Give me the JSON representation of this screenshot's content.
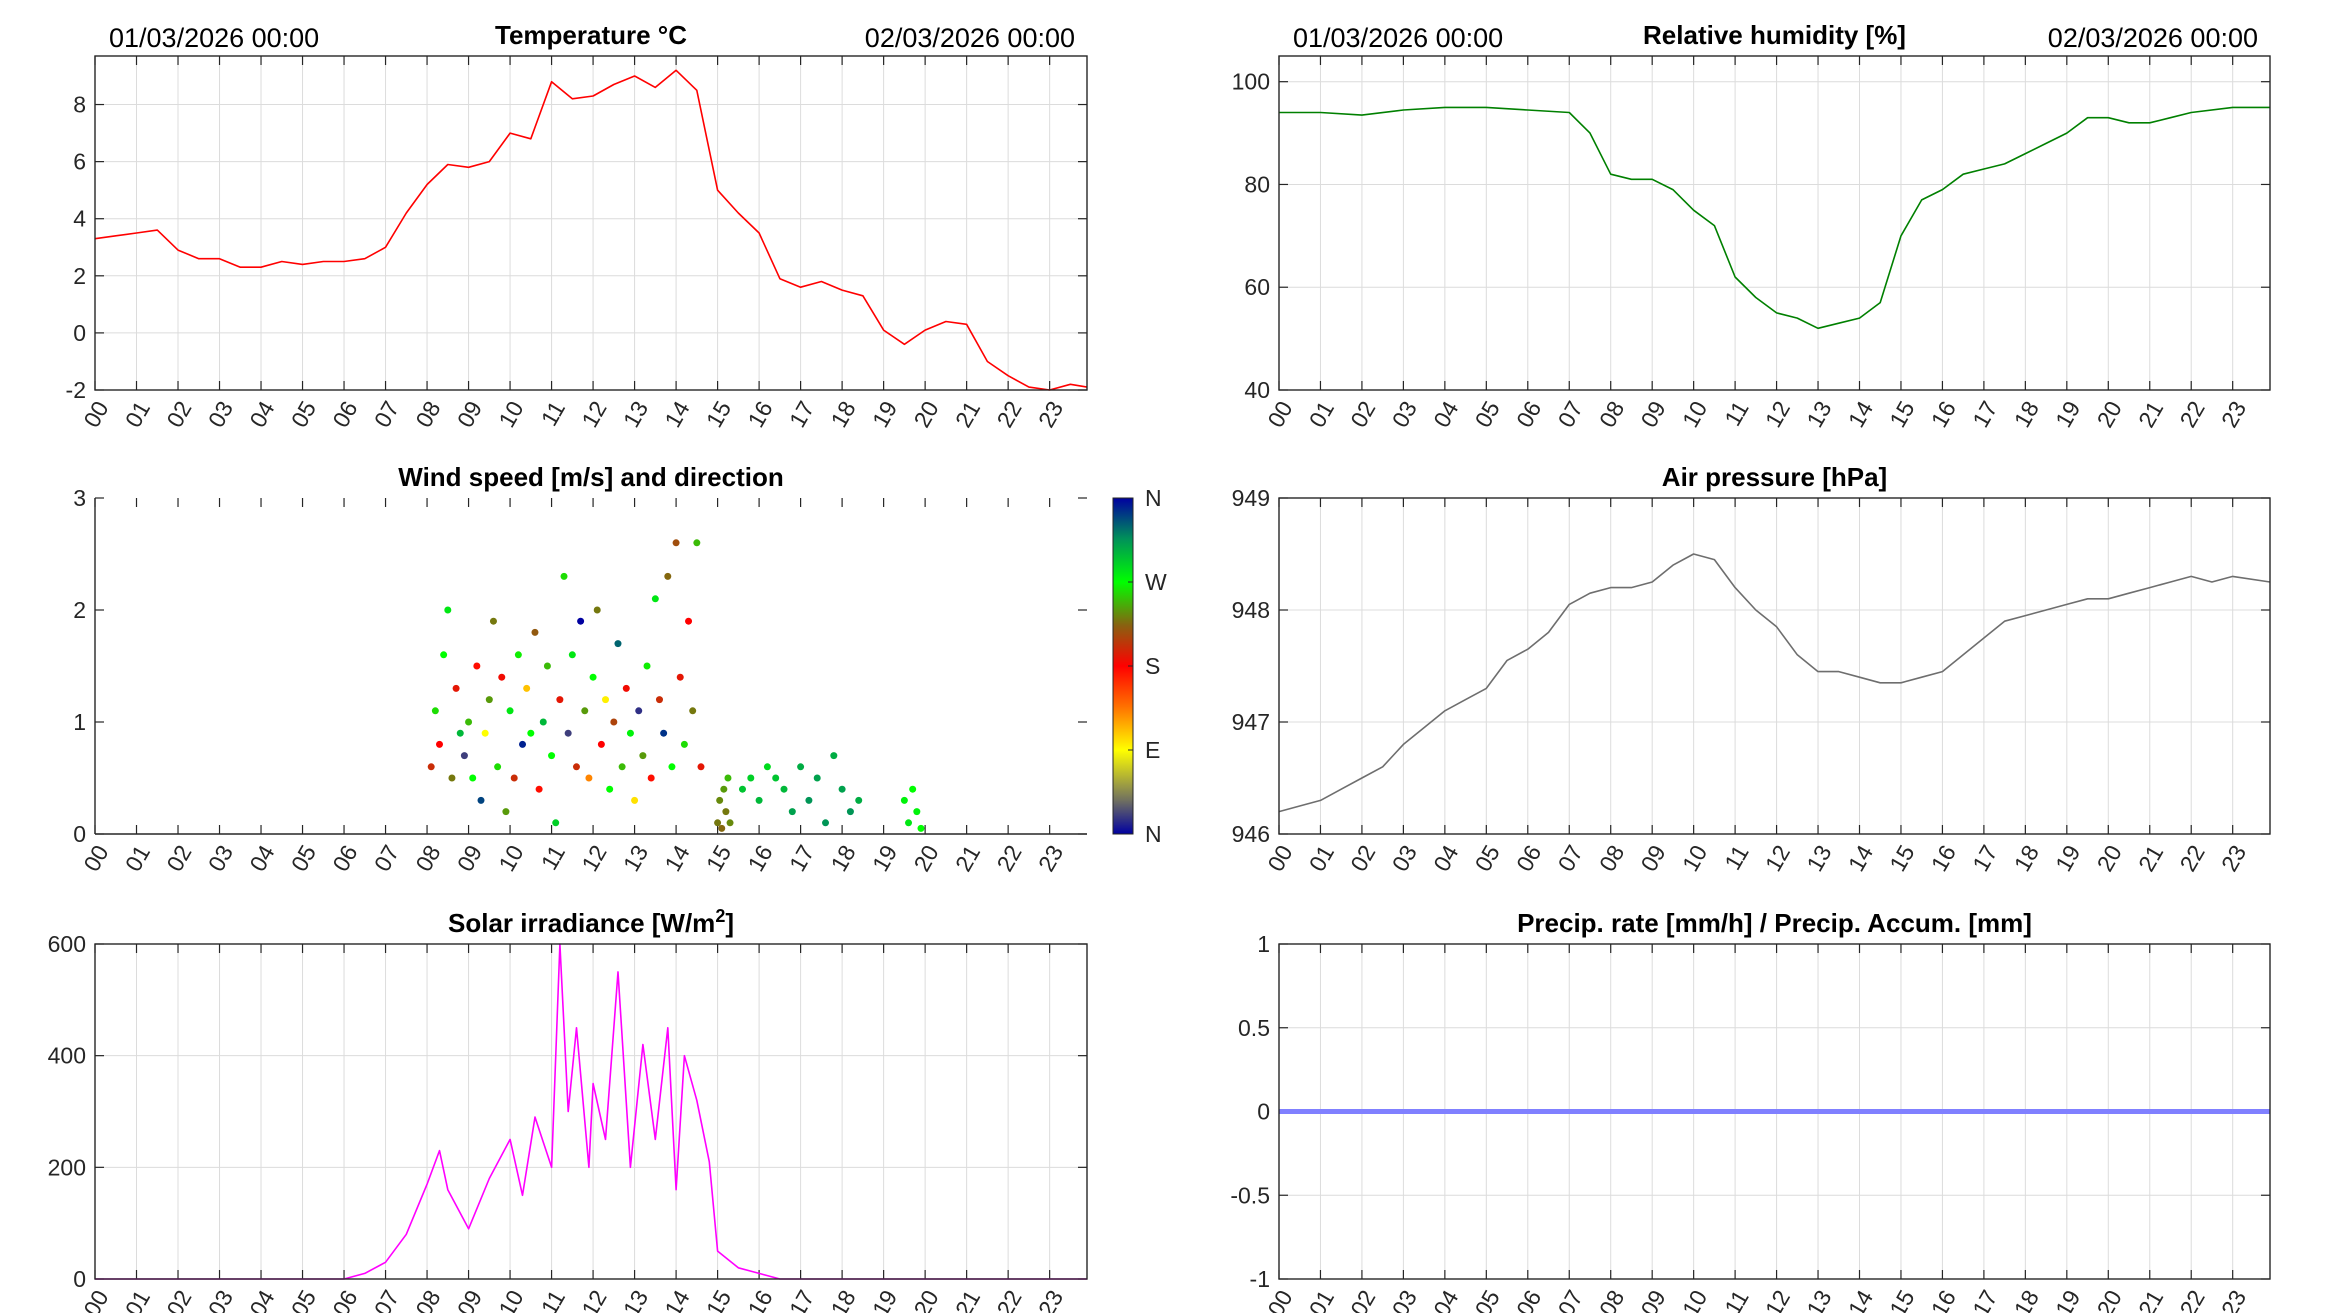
{
  "date_start": "01/03/2026 00:00",
  "date_end": "02/03/2026 00:00",
  "x_tick_labels": [
    "00",
    "01",
    "02",
    "03",
    "04",
    "05",
    "06",
    "07",
    "08",
    "09",
    "10",
    "11",
    "12",
    "13",
    "14",
    "15",
    "16",
    "17",
    "18",
    "19",
    "20",
    "21",
    "22",
    "23"
  ],
  "colors": {
    "temperature": "#ff0000",
    "humidity": "#008000",
    "pressure": "#6e6e6e",
    "solar": "#ff00ff",
    "precip": "#8080ff",
    "grid": "#dcdcdc",
    "axis": "#262626"
  },
  "chart_data": [
    {
      "id": "temperature",
      "type": "line",
      "title": "Temperature °C",
      "show_dates": true,
      "xlabel": "",
      "ylabel": "",
      "xlim": [
        0,
        23.9
      ],
      "ylim": [
        -2,
        9.7
      ],
      "grid": true,
      "y_ticks": [
        -2,
        0,
        2,
        4,
        6,
        8
      ],
      "y_tick_labels": [
        "-2",
        "0",
        "2",
        "4",
        "6",
        "8"
      ],
      "x": [
        0,
        0.5,
        1,
        1.5,
        2,
        2.5,
        3,
        3.5,
        4,
        4.5,
        5,
        5.5,
        6,
        6.5,
        7,
        7.5,
        8,
        8.5,
        9,
        9.5,
        10,
        10.5,
        11,
        11.5,
        12,
        12.5,
        13,
        13.5,
        14,
        14.5,
        15,
        15.5,
        16,
        16.5,
        17,
        17.5,
        18,
        18.5,
        19,
        19.5,
        20,
        20.5,
        21,
        21.5,
        22,
        22.5,
        23,
        23.5,
        23.9
      ],
      "y": [
        3.3,
        3.4,
        3.5,
        3.6,
        2.9,
        2.6,
        2.6,
        2.3,
        2.3,
        2.5,
        2.4,
        2.5,
        2.5,
        2.6,
        3.0,
        4.2,
        5.2,
        5.9,
        5.8,
        6.0,
        7.0,
        6.8,
        8.8,
        8.2,
        8.3,
        8.7,
        9.0,
        8.6,
        9.2,
        8.5,
        5.0,
        4.2,
        3.5,
        1.9,
        1.6,
        1.8,
        1.5,
        1.3,
        0.1,
        -0.4,
        0.1,
        0.4,
        0.3,
        -1.0,
        -1.5,
        -1.9,
        -2.0,
        -1.8,
        -1.9
      ]
    },
    {
      "id": "humidity",
      "type": "line",
      "title": "Relative humidity [%]",
      "show_dates": true,
      "xlabel": "",
      "ylabel": "",
      "xlim": [
        0,
        23.9
      ],
      "ylim": [
        40,
        105
      ],
      "grid": true,
      "y_ticks": [
        40,
        60,
        80,
        100
      ],
      "y_tick_labels": [
        "40",
        "60",
        "80",
        "100"
      ],
      "x": [
        0,
        1,
        2,
        3,
        4,
        5,
        6,
        7,
        7.5,
        8,
        8.5,
        9,
        9.5,
        10,
        10.5,
        11,
        11.5,
        12,
        12.5,
        13,
        13.5,
        14,
        14.5,
        15,
        15.5,
        16,
        16.5,
        17,
        17.5,
        18,
        18.5,
        19,
        19.5,
        20,
        20.5,
        21,
        21.5,
        22,
        23,
        23.9
      ],
      "y": [
        94,
        94,
        93.5,
        94.5,
        95,
        95,
        94.5,
        94,
        90,
        82,
        81,
        81,
        79,
        75,
        72,
        62,
        58,
        55,
        54,
        52,
        53,
        54,
        57,
        70,
        77,
        79,
        82,
        83,
        84,
        86,
        88,
        90,
        93,
        93,
        92,
        92,
        93,
        94,
        95,
        95
      ]
    },
    {
      "id": "wind",
      "type": "scatter",
      "title": "Wind speed [m/s] and direction",
      "show_dates": false,
      "xlabel": "",
      "ylabel": "",
      "xlim": [
        0,
        23.9
      ],
      "ylim": [
        0,
        3
      ],
      "grid": false,
      "y_ticks": [
        0,
        1,
        2,
        3
      ],
      "y_tick_labels": [
        "0",
        "1",
        "2",
        "3"
      ],
      "colorbar_labels": [
        "N",
        "E",
        "S",
        "W",
        "N"
      ],
      "point_fields": [
        "hour",
        "speed_ms",
        "direction_deg"
      ],
      "points": [
        [
          8.1,
          0.6,
          200
        ],
        [
          8.2,
          1.1,
          260
        ],
        [
          8.3,
          0.8,
          180
        ],
        [
          8.4,
          1.6,
          270
        ],
        [
          8.5,
          2.0,
          280
        ],
        [
          8.6,
          0.5,
          230
        ],
        [
          8.7,
          1.3,
          190
        ],
        [
          8.8,
          0.9,
          300
        ],
        [
          8.9,
          0.7,
          20
        ],
        [
          9.0,
          1.0,
          250
        ],
        [
          9.1,
          0.5,
          270
        ],
        [
          9.2,
          1.5,
          175
        ],
        [
          9.3,
          0.3,
          340
        ],
        [
          9.4,
          0.9,
          90
        ],
        [
          9.5,
          1.2,
          240
        ],
        [
          9.6,
          1.9,
          230
        ],
        [
          9.7,
          0.6,
          260
        ],
        [
          9.8,
          1.4,
          185
        ],
        [
          9.9,
          0.2,
          240
        ],
        [
          10.0,
          1.1,
          280
        ],
        [
          10.1,
          0.5,
          200
        ],
        [
          10.2,
          1.6,
          265
        ],
        [
          10.3,
          0.8,
          350
        ],
        [
          10.4,
          1.3,
          110
        ],
        [
          10.5,
          0.9,
          270
        ],
        [
          10.6,
          1.8,
          220
        ],
        [
          10.7,
          0.4,
          175
        ],
        [
          10.8,
          1.0,
          300
        ],
        [
          10.9,
          1.5,
          250
        ],
        [
          11.0,
          0.7,
          270
        ],
        [
          11.1,
          0.1,
          290
        ],
        [
          11.2,
          1.2,
          190
        ],
        [
          11.3,
          2.3,
          260
        ],
        [
          11.4,
          0.9,
          20
        ],
        [
          11.5,
          1.6,
          280
        ],
        [
          11.6,
          0.6,
          200
        ],
        [
          11.7,
          1.9,
          360
        ],
        [
          11.8,
          1.1,
          240
        ],
        [
          11.9,
          0.5,
          130
        ],
        [
          12.0,
          1.4,
          270
        ],
        [
          12.1,
          2.0,
          230
        ],
        [
          12.2,
          0.8,
          180
        ],
        [
          12.3,
          1.2,
          95
        ],
        [
          12.4,
          0.4,
          270
        ],
        [
          12.5,
          1.0,
          210
        ],
        [
          12.6,
          1.7,
          330
        ],
        [
          12.7,
          0.6,
          250
        ],
        [
          12.8,
          1.3,
          185
        ],
        [
          12.9,
          0.9,
          275
        ],
        [
          13.0,
          0.3,
          100
        ],
        [
          13.1,
          1.1,
          15
        ],
        [
          13.2,
          0.7,
          240
        ],
        [
          13.3,
          1.5,
          265
        ],
        [
          13.4,
          0.5,
          175
        ],
        [
          13.5,
          2.1,
          280
        ],
        [
          13.6,
          1.2,
          200
        ],
        [
          13.7,
          0.9,
          345
        ],
        [
          13.8,
          2.3,
          225
        ],
        [
          13.9,
          0.6,
          270
        ],
        [
          14.0,
          2.6,
          215
        ],
        [
          14.1,
          1.4,
          190
        ],
        [
          14.2,
          0.8,
          260
        ],
        [
          14.3,
          1.9,
          180
        ],
        [
          14.4,
          1.1,
          230
        ],
        [
          14.5,
          2.6,
          250
        ],
        [
          14.6,
          0.6,
          190
        ],
        [
          15.0,
          0.1,
          230
        ],
        [
          15.05,
          0.3,
          235
        ],
        [
          15.1,
          0.05,
          225
        ],
        [
          15.15,
          0.4,
          240
        ],
        [
          15.2,
          0.2,
          230
        ],
        [
          15.25,
          0.5,
          250
        ],
        [
          15.3,
          0.1,
          235
        ],
        [
          15.6,
          0.4,
          295
        ],
        [
          15.8,
          0.5,
          290
        ],
        [
          16.0,
          0.3,
          300
        ],
        [
          16.2,
          0.6,
          285
        ],
        [
          16.4,
          0.5,
          295
        ],
        [
          16.6,
          0.4,
          300
        ],
        [
          16.8,
          0.2,
          310
        ],
        [
          17.0,
          0.6,
          305
        ],
        [
          17.2,
          0.3,
          315
        ],
        [
          17.4,
          0.5,
          310
        ],
        [
          17.6,
          0.1,
          315
        ],
        [
          17.8,
          0.7,
          305
        ],
        [
          18.0,
          0.4,
          310
        ],
        [
          18.2,
          0.2,
          315
        ],
        [
          18.4,
          0.3,
          305
        ],
        [
          19.5,
          0.3,
          275
        ],
        [
          19.6,
          0.1,
          280
        ],
        [
          19.7,
          0.4,
          270
        ],
        [
          19.8,
          0.2,
          275
        ],
        [
          19.9,
          0.05,
          270
        ]
      ]
    },
    {
      "id": "pressure",
      "type": "line",
      "title": "Air pressure [hPa]",
      "show_dates": false,
      "xlabel": "",
      "ylabel": "",
      "xlim": [
        0,
        23.9
      ],
      "ylim": [
        946,
        949
      ],
      "grid": true,
      "y_ticks": [
        946,
        947,
        948,
        949
      ],
      "y_tick_labels": [
        "946",
        "947",
        "948",
        "949"
      ],
      "x": [
        0,
        0.5,
        1,
        1.5,
        2,
        2.5,
        3,
        3.5,
        4,
        4.5,
        5,
        5.5,
        6,
        6.5,
        7,
        7.5,
        8,
        8.5,
        9,
        9.5,
        10,
        10.5,
        11,
        11.5,
        12,
        12.5,
        13,
        13.5,
        14,
        14.5,
        15,
        15.5,
        16,
        16.5,
        17,
        17.5,
        18,
        18.5,
        19,
        19.5,
        20,
        20.5,
        21,
        21.5,
        22,
        22.5,
        23,
        23.9
      ],
      "y": [
        946.2,
        946.25,
        946.3,
        946.4,
        946.5,
        946.6,
        946.8,
        946.95,
        947.1,
        947.2,
        947.3,
        947.55,
        947.65,
        947.8,
        948.05,
        948.15,
        948.2,
        948.2,
        948.25,
        948.4,
        948.5,
        948.45,
        948.2,
        948.0,
        947.85,
        947.6,
        947.45,
        947.45,
        947.4,
        947.35,
        947.35,
        947.4,
        947.45,
        947.6,
        947.75,
        947.9,
        947.95,
        948.0,
        948.05,
        948.1,
        948.1,
        948.15,
        948.2,
        948.25,
        948.3,
        948.25,
        948.3,
        948.25
      ]
    },
    {
      "id": "solar",
      "type": "line",
      "title": "Solar irradiance [W/m",
      "title_sup": "2",
      "title_end": "]",
      "show_dates": false,
      "xlabel": "",
      "ylabel": "",
      "xlim": [
        0,
        23.9
      ],
      "ylim": [
        0,
        600
      ],
      "grid": true,
      "y_ticks": [
        0,
        200,
        400,
        600
      ],
      "y_tick_labels": [
        "0",
        "200",
        "400",
        "600"
      ],
      "x": [
        0,
        6,
        6.5,
        7,
        7.5,
        8,
        8.3,
        8.5,
        9,
        9.5,
        10,
        10.3,
        10.6,
        11,
        11.2,
        11.4,
        11.6,
        11.9,
        12,
        12.3,
        12.6,
        12.9,
        13.2,
        13.5,
        13.8,
        14,
        14.2,
        14.5,
        14.8,
        15,
        15.5,
        16,
        16.5,
        23.9
      ],
      "y": [
        0,
        0,
        10,
        30,
        80,
        170,
        230,
        160,
        90,
        180,
        250,
        150,
        290,
        200,
        600,
        300,
        450,
        200,
        350,
        250,
        550,
        200,
        420,
        250,
        450,
        160,
        400,
        320,
        210,
        50,
        20,
        10,
        0,
        0
      ]
    },
    {
      "id": "precip",
      "type": "line",
      "title": "Precip. rate [mm/h] / Precip. Accum. [mm]",
      "show_dates": false,
      "xlabel": "",
      "ylabel": "",
      "xlim": [
        0,
        23.9
      ],
      "ylim": [
        -1,
        1
      ],
      "grid": true,
      "y_ticks": [
        -1,
        -0.5,
        0,
        0.5,
        1
      ],
      "y_tick_labels": [
        "-1",
        "-0.5",
        "0",
        "0.5",
        "1"
      ],
      "x": [
        0,
        23.9
      ],
      "y": [
        0,
        0
      ]
    }
  ]
}
